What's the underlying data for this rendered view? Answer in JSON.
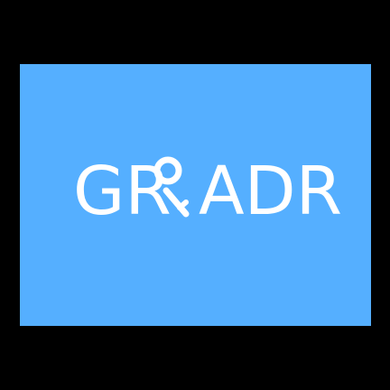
{
  "logo": {
    "text": "GRADR",
    "colors": {
      "background": "#000000",
      "panel": "#55afff",
      "text": "#ffffff"
    }
  }
}
